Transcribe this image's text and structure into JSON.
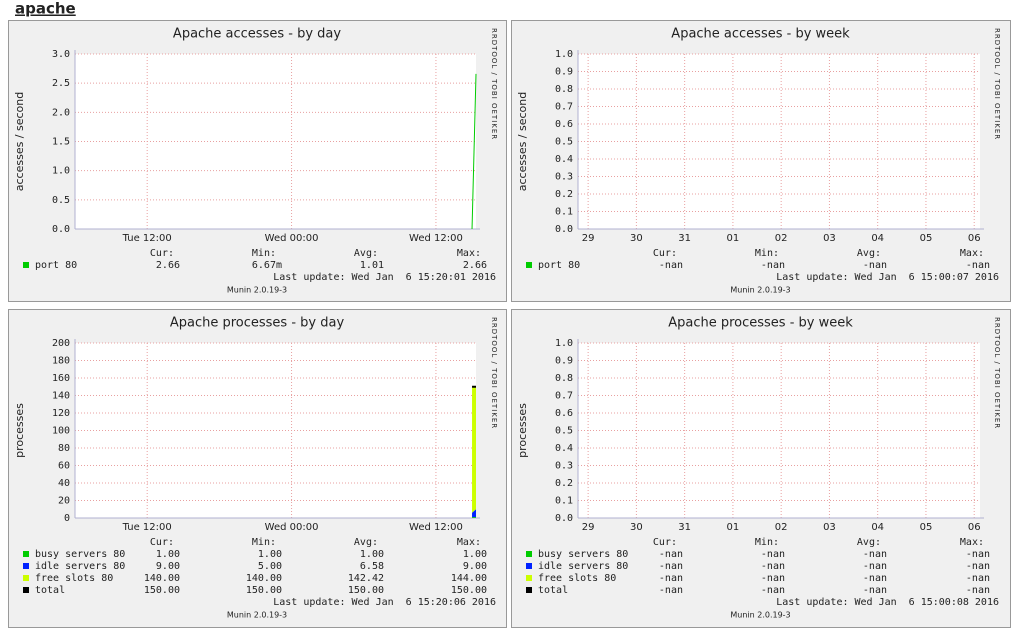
{
  "page_title": "apache",
  "chart_data": [
    {
      "type": "line",
      "title": "Apache accesses - by day",
      "ylabel": "accesses / second",
      "grid": true,
      "xlim": [
        0,
        33.33
      ],
      "xticks": [
        {
          "value": 6,
          "label": "Tue 12:00"
        },
        {
          "value": 18,
          "label": "Wed 00:00"
        },
        {
          "value": 30,
          "label": "Wed 12:00"
        }
      ],
      "ylim": [
        0,
        3
      ],
      "yticks": [
        {
          "value": 0,
          "label": "0.0"
        },
        {
          "value": 0.5,
          "label": "0.5"
        },
        {
          "value": 1,
          "label": "1.0"
        },
        {
          "value": 1.5,
          "label": "1.5"
        },
        {
          "value": 2,
          "label": "2.0"
        },
        {
          "value": 2.5,
          "label": "2.5"
        },
        {
          "value": 3,
          "label": "3.0"
        }
      ],
      "x": [
        33.0,
        33.33
      ],
      "series": [
        {
          "name": "port 80",
          "color": "#00cc00",
          "style": "line",
          "values": [
            0,
            2.66
          ],
          "stats": [
            "2.66",
            "6.67m",
            "1.01",
            "2.66"
          ]
        }
      ],
      "stat_headers": [
        "Cur:",
        "Min:",
        "Avg:",
        "Max:"
      ],
      "last_update": "Last update: Wed Jan  6 15:20:01 2016",
      "footer": "Munin 2.0.19-3",
      "watermark": "RRDTOOL / TOBI OETIKER"
    },
    {
      "type": "line",
      "title": "Apache accesses - by week",
      "ylabel": "accesses / second",
      "grid": true,
      "xlim": [
        28.79,
        37.12
      ],
      "xticks": [
        29,
        30,
        31,
        {
          "value": 32,
          "label": "01"
        },
        {
          "value": 33,
          "label": "02"
        },
        {
          "value": 34,
          "label": "03"
        },
        {
          "value": 35,
          "label": "04"
        },
        {
          "value": 36,
          "label": "05"
        },
        {
          "value": 37,
          "label": "06"
        }
      ],
      "ylim": [
        0,
        1
      ],
      "yticks": [
        {
          "value": 0,
          "label": "0.0"
        },
        {
          "value": 0.1,
          "label": "0.1"
        },
        {
          "value": 0.2,
          "label": "0.2"
        },
        {
          "value": 0.3,
          "label": "0.3"
        },
        {
          "value": 0.4,
          "label": "0.4"
        },
        {
          "value": 0.5,
          "label": "0.5"
        },
        {
          "value": 0.6,
          "label": "0.6"
        },
        {
          "value": 0.7,
          "label": "0.7"
        },
        {
          "value": 0.8,
          "label": "0.8"
        },
        {
          "value": 0.9,
          "label": "0.9"
        },
        {
          "value": 1,
          "label": "1.0"
        }
      ],
      "x": [],
      "series": [
        {
          "name": "port 80",
          "color": "#00cc00",
          "style": "line",
          "values": [],
          "stats": [
            "-nan",
            "-nan",
            "-nan",
            "-nan"
          ]
        }
      ],
      "stat_headers": [
        "Cur:",
        "Min:",
        "Avg:",
        "Max:"
      ],
      "last_update": "Last update: Wed Jan  6 15:00:07 2016",
      "footer": "Munin 2.0.19-3",
      "watermark": "RRDTOOL / TOBI OETIKER"
    },
    {
      "type": "area",
      "title": "Apache processes - by day",
      "ylabel": "processes",
      "grid": true,
      "xlim": [
        0,
        33.33
      ],
      "xticks": [
        {
          "value": 6,
          "label": "Tue 12:00"
        },
        {
          "value": 18,
          "label": "Wed 00:00"
        },
        {
          "value": 30,
          "label": "Wed 12:00"
        }
      ],
      "ylim": [
        0,
        200
      ],
      "yticks": [
        0,
        20,
        40,
        60,
        80,
        100,
        120,
        140,
        160,
        180,
        200
      ],
      "x": [
        33.0,
        33.33
      ],
      "series": [
        {
          "name": "busy servers 80",
          "color": "#00cc00",
          "style": "area",
          "values": [
            1,
            1
          ],
          "stats": [
            "1.00",
            "1.00",
            "1.00",
            "1.00"
          ]
        },
        {
          "name": "idle servers 80",
          "color": "#0022ff",
          "style": "area",
          "values": [
            5,
            9
          ],
          "stats": [
            "9.00",
            "5.00",
            "6.58",
            "9.00"
          ]
        },
        {
          "name": "free slots 80",
          "color": "#ccff00",
          "style": "area",
          "values": [
            144,
            140
          ],
          "stats": [
            "140.00",
            "140.00",
            "142.42",
            "144.00"
          ]
        },
        {
          "name": "total",
          "color": "#000000",
          "style": "line",
          "values": [
            150,
            150
          ],
          "stats": [
            "150.00",
            "150.00",
            "150.00",
            "150.00"
          ]
        }
      ],
      "stat_headers": [
        "Cur:",
        "Min:",
        "Avg:",
        "Max:"
      ],
      "last_update": "Last update: Wed Jan  6 15:20:06 2016",
      "footer": "Munin 2.0.19-3",
      "watermark": "RRDTOOL / TOBI OETIKER"
    },
    {
      "type": "area",
      "title": "Apache processes - by week",
      "ylabel": "processes",
      "grid": true,
      "xlim": [
        28.79,
        37.12
      ],
      "xticks": [
        29,
        30,
        31,
        {
          "value": 32,
          "label": "01"
        },
        {
          "value": 33,
          "label": "02"
        },
        {
          "value": 34,
          "label": "03"
        },
        {
          "value": 35,
          "label": "04"
        },
        {
          "value": 36,
          "label": "05"
        },
        {
          "value": 37,
          "label": "06"
        }
      ],
      "ylim": [
        0,
        1
      ],
      "yticks": [
        {
          "value": 0,
          "label": "0.0"
        },
        {
          "value": 0.1,
          "label": "0.1"
        },
        {
          "value": 0.2,
          "label": "0.2"
        },
        {
          "value": 0.3,
          "label": "0.3"
        },
        {
          "value": 0.4,
          "label": "0.4"
        },
        {
          "value": 0.5,
          "label": "0.5"
        },
        {
          "value": 0.6,
          "label": "0.6"
        },
        {
          "value": 0.7,
          "label": "0.7"
        },
        {
          "value": 0.8,
          "label": "0.8"
        },
        {
          "value": 0.9,
          "label": "0.9"
        },
        {
          "value": 1,
          "label": "1.0"
        }
      ],
      "x": [],
      "series": [
        {
          "name": "busy servers 80",
          "color": "#00cc00",
          "style": "area",
          "values": [],
          "stats": [
            "-nan",
            "-nan",
            "-nan",
            "-nan"
          ]
        },
        {
          "name": "idle servers 80",
          "color": "#0022ff",
          "style": "area",
          "values": [],
          "stats": [
            "-nan",
            "-nan",
            "-nan",
            "-nan"
          ]
        },
        {
          "name": "free slots 80",
          "color": "#ccff00",
          "style": "area",
          "values": [],
          "stats": [
            "-nan",
            "-nan",
            "-nan",
            "-nan"
          ]
        },
        {
          "name": "total",
          "color": "#000000",
          "style": "line",
          "values": [],
          "stats": [
            "-nan",
            "-nan",
            "-nan",
            "-nan"
          ]
        }
      ],
      "stat_headers": [
        "Cur:",
        "Min:",
        "Avg:",
        "Max:"
      ],
      "last_update": "Last update: Wed Jan  6 15:00:08 2016",
      "footer": "Munin 2.0.19-3",
      "watermark": "RRDTOOL / TOBI OETIKER"
    }
  ]
}
